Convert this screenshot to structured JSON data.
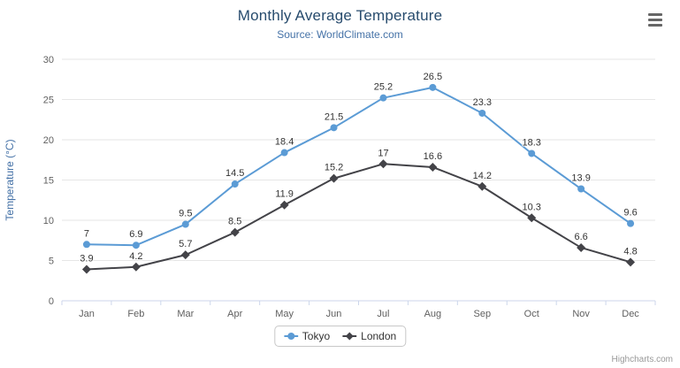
{
  "chart_data": {
    "type": "line",
    "title": "Monthly Average Temperature",
    "subtitle": "Source: WorldClimate.com",
    "xlabel": "",
    "ylabel": "Temperature (°C)",
    "ylim": [
      0,
      30
    ],
    "yticks": [
      0,
      5,
      10,
      15,
      20,
      25,
      30
    ],
    "grid": "horizontal",
    "legend_position": "bottom-center",
    "categories": [
      "Jan",
      "Feb",
      "Mar",
      "Apr",
      "May",
      "Jun",
      "Jul",
      "Aug",
      "Sep",
      "Oct",
      "Nov",
      "Dec"
    ],
    "series": [
      {
        "name": "Tokyo",
        "marker": "circle",
        "color": "#5b9bd5",
        "values": [
          7,
          6.9,
          9.5,
          14.5,
          18.4,
          21.5,
          25.2,
          26.5,
          23.3,
          18.3,
          13.9,
          9.6
        ]
      },
      {
        "name": "London",
        "marker": "diamond",
        "color": "#434348",
        "values": [
          3.9,
          4.2,
          5.7,
          8.5,
          11.9,
          15.2,
          17,
          16.6,
          14.2,
          10.3,
          6.6,
          4.8
        ]
      }
    ]
  },
  "colors": {
    "title": "#274b6d",
    "subtitle": "#4572a7",
    "axis_title": "#4572a7",
    "tick_label": "#606060",
    "grid": "#e6e6e6",
    "axis_line": "#ccd6eb",
    "data_label": "#333333",
    "legend_text": "#333333",
    "credits": "#999999",
    "menu_icon": "#666666"
  },
  "icons": {
    "context_menu": "hamburger-icon"
  },
  "credits": "Highcharts.com"
}
